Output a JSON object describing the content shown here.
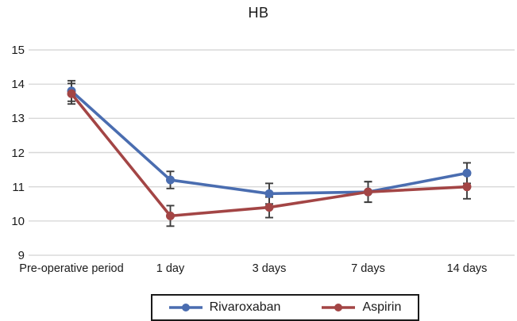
{
  "title": "HB",
  "chart_data": {
    "type": "line",
    "title": "HB",
    "categories": [
      "Pre-operative period",
      "1 day",
      "3 days",
      "7 days",
      "14 days"
    ],
    "series": [
      {
        "name": "Rivaroxaban",
        "color": "#4a6db0",
        "values": [
          13.8,
          11.2,
          10.8,
          10.85,
          11.4
        ],
        "errors": [
          0.3,
          0.25,
          0.3,
          0.3,
          0.3
        ]
      },
      {
        "name": "Aspirin",
        "color": "#a34545",
        "values": [
          13.72,
          10.15,
          10.4,
          10.85,
          11.0
        ],
        "errors": [
          0.3,
          0.3,
          0.3,
          0.3,
          0.35
        ]
      }
    ],
    "xlabel": "",
    "ylabel": "",
    "ylim": [
      9,
      15
    ],
    "yticks": [
      15,
      14,
      13,
      12,
      11,
      10,
      9
    ],
    "grid": true,
    "legend_position": "bottom",
    "colors": {
      "gridline": "#d8d8d8",
      "error_bar": "#3d3d3d",
      "text": "#1a1a1a",
      "background": "#ffffff",
      "legend_border": "#1a1a1a"
    }
  }
}
